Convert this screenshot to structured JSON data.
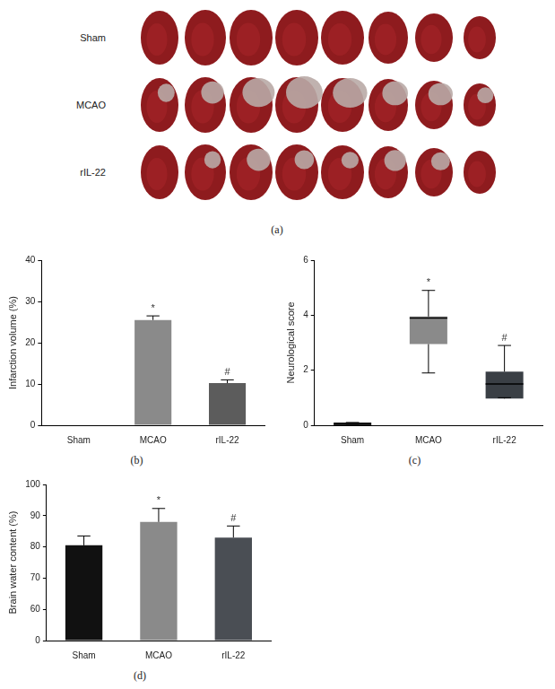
{
  "image_panel": {
    "caption": "(a)",
    "row_labels": [
      "Sham",
      "MCAO",
      "rIL-22"
    ]
  },
  "chart_data": [
    {
      "type": "bar",
      "caption": "(b)",
      "y_label": "Infarction volume (%)",
      "categories": [
        "Sham",
        "MCAO",
        "rIL-22"
      ],
      "values": [
        0,
        25.5,
        10.2
      ],
      "errors": [
        0,
        1.0,
        0.8
      ],
      "colors": [
        "#111111",
        "#8a8a8a",
        "#5c5c5c"
      ],
      "significance": [
        null,
        "*",
        "#"
      ],
      "ylim": [
        0,
        40
      ],
      "yticks": [
        0,
        10,
        20,
        30,
        40
      ],
      "grid": false
    },
    {
      "type": "box",
      "caption": "(c)",
      "y_label": "Neurological score",
      "categories": [
        "Sham",
        "MCAO",
        "rIL-22"
      ],
      "min": [
        0,
        1.9,
        1.0
      ],
      "q1": [
        0,
        2.95,
        0.97
      ],
      "median": [
        0,
        3.9,
        1.5
      ],
      "q3": [
        0.1,
        3.95,
        1.95
      ],
      "max": [
        0.1,
        4.9,
        2.9
      ],
      "colors": [
        "#111111",
        "#8a8a8a",
        "#3a3f45"
      ],
      "significance": [
        null,
        "*",
        "#"
      ],
      "ylim": [
        0,
        6
      ],
      "yticks": [
        0,
        2,
        4,
        6
      ],
      "grid": false
    },
    {
      "type": "bar",
      "caption": "(d)",
      "y_label": "Brain water content (%)",
      "categories": [
        "Sham",
        "MCAO",
        "rIL-22"
      ],
      "values": [
        80.5,
        88.0,
        83.0
      ],
      "errors": [
        3.0,
        4.3,
        3.7
      ],
      "colors": [
        "#111111",
        "#8a8a8a",
        "#4a4e54"
      ],
      "significance": [
        null,
        "*",
        "#"
      ],
      "ylim": [
        0,
        100
      ],
      "yticks": [
        0,
        60,
        70,
        80,
        90,
        100
      ],
      "grid": false
    }
  ]
}
